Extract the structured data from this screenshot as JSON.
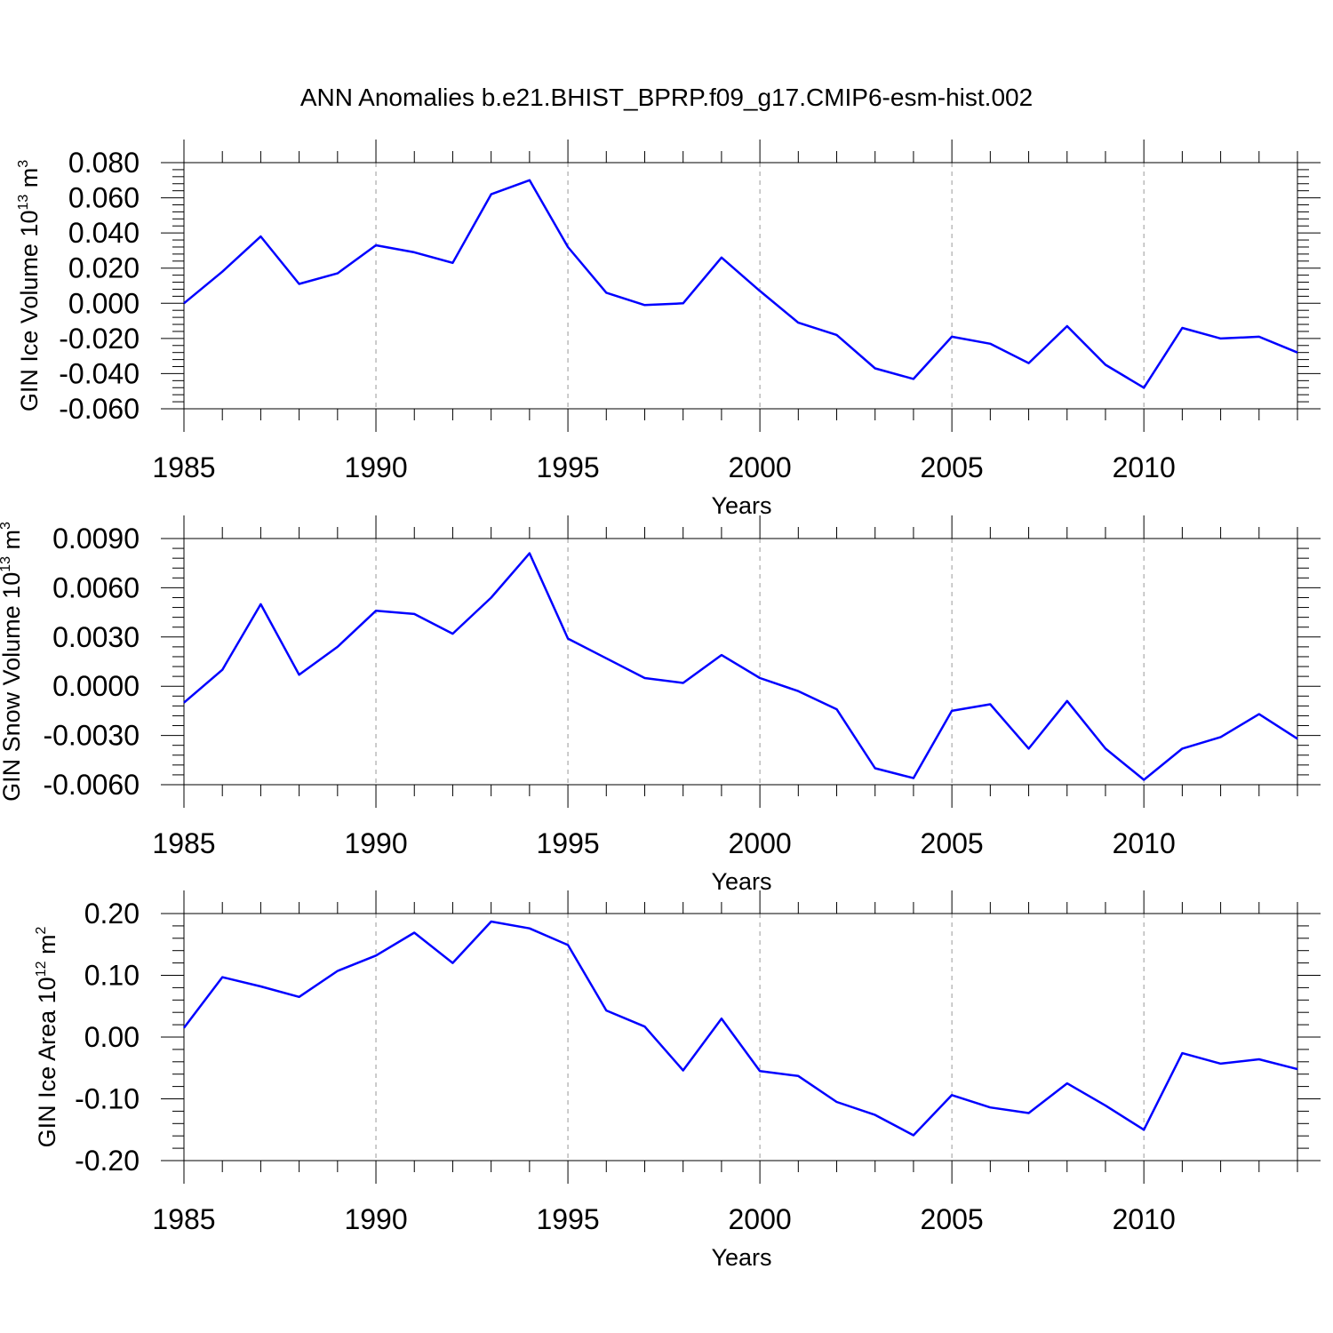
{
  "title": "ANN Anomalies b.e21.BHIST_BPRP.f09_g17.CMIP6-esm-hist.002",
  "line_color": "#0000ff",
  "grid_color": "#999999",
  "chart_data": [
    {
      "type": "line",
      "ylabel": "GIN Ice Volume",
      "yunit_base": "10",
      "yunit_exp": "13",
      "yunit_sym": "m",
      "yunit_pow": "3",
      "xlabel": "Years",
      "xlim": [
        1985,
        2014
      ],
      "ylim": [
        -0.06,
        0.08
      ],
      "xticks": [
        "1985",
        "1990",
        "1995",
        "2000",
        "2005",
        "2010"
      ],
      "yticks": [
        "-0.060",
        "-0.040",
        "-0.020",
        "0.000",
        "0.020",
        "0.040",
        "0.060",
        "0.080"
      ],
      "grid": "vertical dashed at major x ticks",
      "x": [
        1985,
        1986,
        1987,
        1988,
        1989,
        1990,
        1991,
        1992,
        1993,
        1994,
        1995,
        1996,
        1997,
        1998,
        1999,
        2000,
        2001,
        2002,
        2003,
        2004,
        2005,
        2006,
        2007,
        2008,
        2009,
        2010,
        2011,
        2012,
        2013,
        2014
      ],
      "values": [
        0.0,
        0.018,
        0.038,
        0.011,
        0.017,
        0.033,
        0.029,
        0.023,
        0.062,
        0.07,
        0.032,
        0.006,
        -0.001,
        0.0,
        0.026,
        0.007,
        -0.011,
        -0.018,
        -0.037,
        -0.043,
        -0.019,
        -0.023,
        -0.034,
        -0.013,
        -0.035,
        -0.048,
        -0.014,
        -0.02,
        -0.019,
        -0.028
      ]
    },
    {
      "type": "line",
      "ylabel": "GIN Snow Volume",
      "yunit_base": "10",
      "yunit_exp": "13",
      "yunit_sym": "m",
      "yunit_pow": "3",
      "xlabel": "Years",
      "xlim": [
        1985,
        2014
      ],
      "ylim": [
        -0.006,
        0.009
      ],
      "xticks": [
        "1985",
        "1990",
        "1995",
        "2000",
        "2005",
        "2010"
      ],
      "yticks": [
        "-0.0060",
        "-0.0030",
        "0.0000",
        "0.0030",
        "0.0060",
        "0.0090"
      ],
      "grid": "vertical dashed at major x ticks",
      "x": [
        1985,
        1986,
        1987,
        1988,
        1989,
        1990,
        1991,
        1992,
        1993,
        1994,
        1995,
        1996,
        1997,
        1998,
        1999,
        2000,
        2001,
        2002,
        2003,
        2004,
        2005,
        2006,
        2007,
        2008,
        2009,
        2010,
        2011,
        2012,
        2013,
        2014
      ],
      "values": [
        -0.001,
        0.001,
        0.005,
        0.0007,
        0.0024,
        0.0046,
        0.0044,
        0.0032,
        0.0054,
        0.0081,
        0.0029,
        0.0017,
        0.0005,
        0.0002,
        0.0019,
        0.0005,
        -0.0003,
        -0.0014,
        -0.005,
        -0.0056,
        -0.0015,
        -0.0011,
        -0.0038,
        -0.0009,
        -0.0038,
        -0.0057,
        -0.0038,
        -0.0031,
        -0.0017,
        -0.0032
      ]
    },
    {
      "type": "line",
      "ylabel": "GIN Ice Area",
      "yunit_base": "10",
      "yunit_exp": "12",
      "yunit_sym": "m",
      "yunit_pow": "2",
      "xlabel": "Years",
      "xlim": [
        1985,
        2014
      ],
      "ylim": [
        -0.2,
        0.2
      ],
      "xticks": [
        "1985",
        "1990",
        "1995",
        "2000",
        "2005",
        "2010"
      ],
      "yticks": [
        "-0.20",
        "-0.10",
        "0.00",
        "0.10",
        "0.20"
      ],
      "grid": "vertical dashed at major x ticks",
      "x": [
        1985,
        1986,
        1987,
        1988,
        1989,
        1990,
        1991,
        1992,
        1993,
        1994,
        1995,
        1996,
        1997,
        1998,
        1999,
        2000,
        2001,
        2002,
        2003,
        2004,
        2005,
        2006,
        2007,
        2008,
        2009,
        2010,
        2011,
        2012,
        2013,
        2014
      ],
      "values": [
        0.015,
        0.097,
        0.082,
        0.065,
        0.107,
        0.132,
        0.169,
        0.12,
        0.187,
        0.176,
        0.149,
        0.043,
        0.017,
        -0.054,
        0.03,
        -0.055,
        -0.063,
        -0.105,
        -0.126,
        -0.159,
        -0.094,
        -0.114,
        -0.123,
        -0.075,
        -0.111,
        -0.15,
        -0.026,
        -0.043,
        -0.036,
        -0.052
      ]
    }
  ]
}
